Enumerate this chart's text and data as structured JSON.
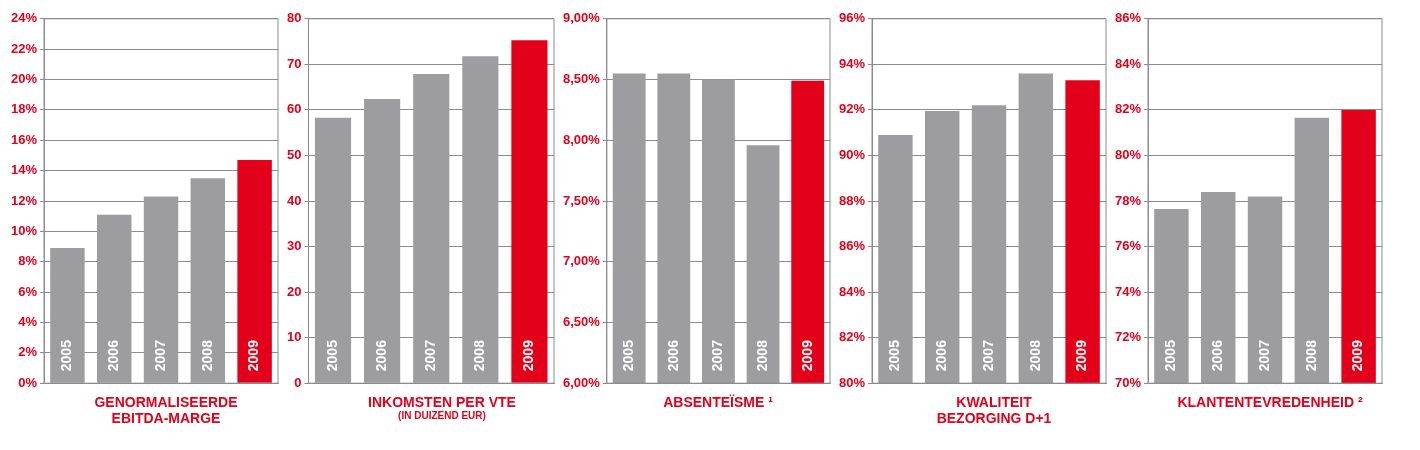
{
  "chart_data": [
    {
      "type": "bar",
      "title": "GENORMALISEERDE\nEBITDA-MARGE",
      "categories": [
        "2005",
        "2006",
        "2007",
        "2008",
        "2009"
      ],
      "values": [
        8.9,
        11.1,
        12.3,
        13.5,
        14.7
      ],
      "colors": [
        "#9d9d9f",
        "#9d9d9f",
        "#9d9d9f",
        "#9d9d9f",
        "#e2001a"
      ],
      "ylim": [
        0,
        24
      ],
      "yticks": [
        {
          "value": 0,
          "label": "0%"
        },
        {
          "value": 2,
          "label": "2%"
        },
        {
          "value": 4,
          "label": "4%"
        },
        {
          "value": 6,
          "label": "6%"
        },
        {
          "value": 8,
          "label": "8%"
        },
        {
          "value": 10,
          "label": "10%"
        },
        {
          "value": 12,
          "label": "12%"
        },
        {
          "value": 14,
          "label": "14%"
        },
        {
          "value": 16,
          "label": "16%"
        },
        {
          "value": 18,
          "label": "18%"
        },
        {
          "value": 20,
          "label": "20%"
        },
        {
          "value": 22,
          "label": "22%"
        },
        {
          "value": 24,
          "label": "24%"
        }
      ],
      "grid": "y"
    },
    {
      "type": "bar",
      "title": "INKOMSTEN PER VTE",
      "subtitle": "(IN DUIZEND EUR)",
      "categories": [
        "2005",
        "2006",
        "2007",
        "2008",
        "2009"
      ],
      "values": [
        58.3,
        62.4,
        67.9,
        71.8,
        75.3
      ],
      "colors": [
        "#9d9d9f",
        "#9d9d9f",
        "#9d9d9f",
        "#9d9d9f",
        "#e2001a"
      ],
      "ylim": [
        0,
        80
      ],
      "yticks": [
        0,
        10,
        20,
        30,
        40,
        50,
        60,
        70,
        80
      ],
      "grid": "y"
    },
    {
      "type": "bar",
      "title": "ABSENTEÏSME ¹",
      "categories": [
        "2005",
        "2006",
        "2007",
        "2008",
        "2009"
      ],
      "values": [
        8.55,
        8.55,
        8.5,
        7.96,
        8.49
      ],
      "colors": [
        "#9d9d9f",
        "#9d9d9f",
        "#9d9d9f",
        "#9d9d9f",
        "#e2001a"
      ],
      "ylim": [
        6,
        9
      ],
      "yticks": [
        {
          "value": 6,
          "label": "6,00%"
        },
        {
          "value": 6.5,
          "label": "6,50%"
        },
        {
          "value": 7,
          "label": "7,00%"
        },
        {
          "value": 7.5,
          "label": "7,50%"
        },
        {
          "value": 8,
          "label": "8,00%"
        },
        {
          "value": 8.5,
          "label": "8,50%"
        },
        {
          "value": 9,
          "label": "9,00%"
        }
      ],
      "grid": "y"
    },
    {
      "type": "bar",
      "title": "KWALITEIT\nBEZORGING D+1",
      "categories": [
        "2005",
        "2006",
        "2007",
        "2008",
        "2009"
      ],
      "values": [
        90.9,
        91.95,
        92.2,
        93.6,
        93.3
      ],
      "colors": [
        "#9d9d9f",
        "#9d9d9f",
        "#9d9d9f",
        "#9d9d9f",
        "#e2001a"
      ],
      "ylim": [
        80,
        96
      ],
      "yticks": [
        {
          "value": 80,
          "label": "80%"
        },
        {
          "value": 82,
          "label": "82%"
        },
        {
          "value": 84,
          "label": "84%"
        },
        {
          "value": 86,
          "label": "86%"
        },
        {
          "value": 88,
          "label": "88%"
        },
        {
          "value": 90,
          "label": "90%"
        },
        {
          "value": 92,
          "label": "92%"
        },
        {
          "value": 94,
          "label": "94%"
        },
        {
          "value": 96,
          "label": "96%"
        }
      ],
      "grid": "y"
    },
    {
      "type": "bar",
      "title": "KLANTENTEVREDENHEID ²",
      "categories": [
        "2005",
        "2006",
        "2007",
        "2008",
        "2009"
      ],
      "values": [
        77.65,
        78.4,
        78.2,
        81.65,
        82.0
      ],
      "colors": [
        "#9d9d9f",
        "#9d9d9f",
        "#9d9d9f",
        "#9d9d9f",
        "#e2001a"
      ],
      "ylim": [
        70,
        86
      ],
      "yticks": [
        {
          "value": 70,
          "label": "70%"
        },
        {
          "value": 72,
          "label": "72%"
        },
        {
          "value": 74,
          "label": "74%"
        },
        {
          "value": 76,
          "label": "76%"
        },
        {
          "value": 78,
          "label": "78%"
        },
        {
          "value": 80,
          "label": "80%"
        },
        {
          "value": 82,
          "label": "82%"
        },
        {
          "value": 84,
          "label": "84%"
        },
        {
          "value": 86,
          "label": "86%"
        }
      ],
      "grid": "y"
    }
  ]
}
